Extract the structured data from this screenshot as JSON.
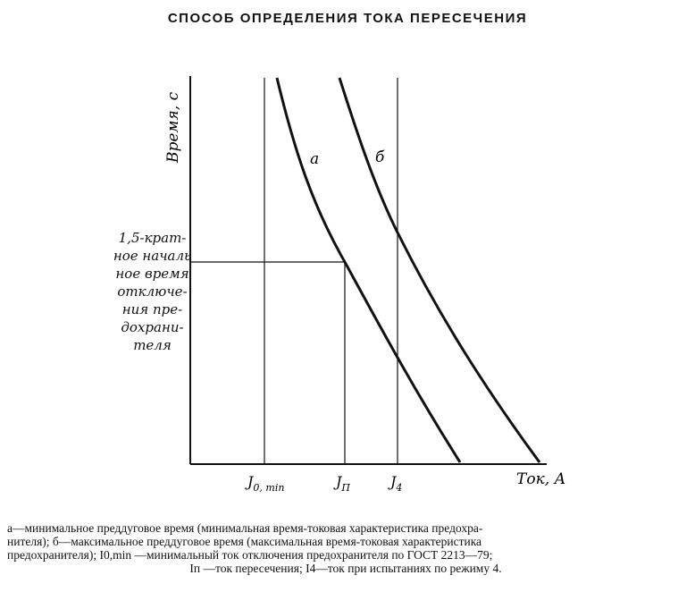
{
  "title": "СПОСОБ ОПРЕДЕЛЕНИЯ ТОКА ПЕРЕСЕЧЕНИЯ",
  "axes": {
    "y_label": "Время, с",
    "x_label": "Ток, А"
  },
  "y_marker_label": [
    "1,5-крат-",
    "ное началь",
    "ное время",
    "отключе-",
    "ния пре-",
    "дохрани-",
    "теля"
  ],
  "x_ticks": {
    "i0min": "J",
    "i0min_sub": "0, min",
    "ip": "J",
    "ip_sub": "П",
    "i4": "J",
    "i4_sub": "4"
  },
  "curves": {
    "a": {
      "label": "а",
      "meaning": "минимальное преддуговое время"
    },
    "b": {
      "label": "б",
      "meaning": "максимальное преддуговое время"
    }
  },
  "caption": {
    "line1": "а—минимальное преддуговое время (минимальная время-токовая характеристика предохра-",
    "line2": "нителя); б—максимальное преддуговое время (максимальная время-токовая характеристика",
    "line3": "предохранителя); I0,min —минимальный ток отключения предохранителя по ГОСТ 2213—79;",
    "line4": "Iп —ток пересечения; I4—ток при испытаниях по режиму 4."
  }
}
